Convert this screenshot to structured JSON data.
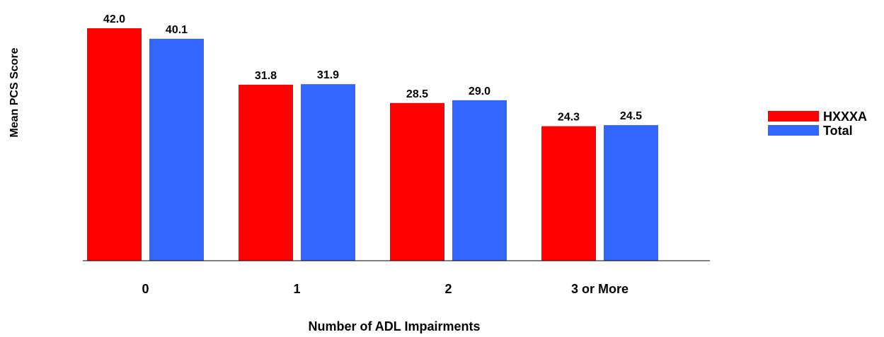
{
  "chart_data": {
    "type": "bar",
    "title": "",
    "xlabel": "Number of ADL Impairments",
    "ylabel": "Mean PCS Score",
    "categories": [
      "0",
      "1",
      "2",
      "3 or More"
    ],
    "series": [
      {
        "name": "HXXXA",
        "color": "#ff0000",
        "values": [
          42.0,
          31.8,
          28.5,
          24.3
        ],
        "value_labels": [
          "42.0",
          "31.8",
          "28.5",
          "24.3"
        ]
      },
      {
        "name": "Total",
        "color": "#3366ff",
        "values": [
          40.1,
          31.9,
          29.0,
          24.5
        ],
        "value_labels": [
          "40.1",
          "31.9",
          "29.0",
          "24.5"
        ]
      }
    ],
    "ylim": [
      0,
      42.0
    ],
    "grid": false,
    "legend": "right"
  }
}
